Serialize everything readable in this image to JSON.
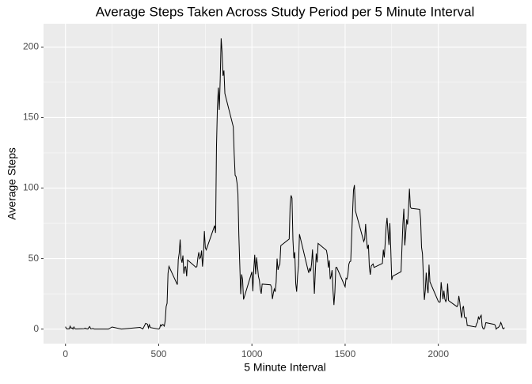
{
  "chart_data": {
    "type": "line",
    "title": "Average Steps Taken Across Study Period per 5 Minute Interval",
    "x_label": "5 Minute Interval",
    "y_label": "Average Steps",
    "x": [
      0,
      5,
      10,
      15,
      20,
      25,
      30,
      35,
      40,
      45,
      50,
      55,
      100,
      105,
      110,
      115,
      120,
      125,
      130,
      135,
      140,
      145,
      150,
      155,
      200,
      230,
      250,
      300,
      330,
      400,
      415,
      430,
      440,
      445,
      450,
      455,
      500,
      505,
      510,
      515,
      520,
      525,
      530,
      535,
      540,
      545,
      550,
      555,
      600,
      605,
      610,
      615,
      620,
      625,
      630,
      635,
      640,
      645,
      650,
      655,
      700,
      705,
      710,
      715,
      720,
      725,
      730,
      735,
      740,
      745,
      750,
      755,
      800,
      805,
      810,
      815,
      820,
      825,
      830,
      835,
      840,
      845,
      850,
      855,
      900,
      905,
      910,
      915,
      920,
      925,
      930,
      935,
      940,
      945,
      950,
      955,
      1000,
      1005,
      1010,
      1015,
      1020,
      1025,
      1030,
      1035,
      1040,
      1045,
      1050,
      1055,
      1100,
      1105,
      1110,
      1115,
      1120,
      1125,
      1130,
      1135,
      1140,
      1145,
      1150,
      1155,
      1200,
      1205,
      1210,
      1215,
      1220,
      1225,
      1230,
      1235,
      1240,
      1245,
      1250,
      1255,
      1300,
      1305,
      1310,
      1315,
      1320,
      1325,
      1330,
      1335,
      1340,
      1345,
      1350,
      1355,
      1400,
      1405,
      1410,
      1415,
      1420,
      1425,
      1430,
      1435,
      1440,
      1445,
      1450,
      1455,
      1500,
      1505,
      1510,
      1515,
      1520,
      1525,
      1530,
      1535,
      1540,
      1545,
      1550,
      1555,
      1600,
      1605,
      1610,
      1615,
      1620,
      1625,
      1630,
      1635,
      1640,
      1645,
      1650,
      1655,
      1700,
      1705,
      1710,
      1715,
      1720,
      1725,
      1730,
      1735,
      1740,
      1745,
      1750,
      1755,
      1800,
      1805,
      1810,
      1815,
      1820,
      1825,
      1830,
      1835,
      1840,
      1845,
      1850,
      1855,
      1900,
      1905,
      1910,
      1915,
      1920,
      1925,
      1930,
      1935,
      1940,
      1945,
      1950,
      1955,
      2000,
      2005,
      2010,
      2015,
      2020,
      2025,
      2030,
      2035,
      2040,
      2045,
      2050,
      2055,
      2100,
      2105,
      2110,
      2115,
      2120,
      2125,
      2130,
      2135,
      2140,
      2145,
      2150,
      2155,
      2200,
      2205,
      2210,
      2215,
      2220,
      2225,
      2230,
      2235,
      2240,
      2245,
      2250,
      2255,
      2300,
      2305,
      2310,
      2315,
      2320,
      2325,
      2330,
      2335,
      2340,
      2345,
      2350,
      2355
    ],
    "values": [
      1.7,
      0.3,
      0.1,
      0.2,
      0.1,
      2.1,
      0.5,
      0.9,
      0,
      1.5,
      0.3,
      0.1,
      0.3,
      0.7,
      0.2,
      0.3,
      0,
      1.1,
      1.8,
      0.2,
      0.2,
      0.4,
      0.3,
      0,
      0,
      0,
      1.5,
      0,
      0.4,
      1.2,
      0.1,
      4.1,
      3.5,
      0.8,
      3.1,
      1.1,
      0,
      0.5,
      3,
      2.2,
      3.3,
      3,
      2.1,
      6.1,
      16,
      18.3,
      39.5,
      44.5,
      31.5,
      49.3,
      53.8,
      63.5,
      50,
      47.1,
      52.2,
      39.3,
      44,
      44.2,
      37.4,
      49,
      43.8,
      44.4,
      50.5,
      54.5,
      49.9,
      50.9,
      55.7,
      44.3,
      52.3,
      69.5,
      57.8,
      56.2,
      73.4,
      68.2,
      129.4,
      157.5,
      171.2,
      155.4,
      177.3,
      206.2,
      195.9,
      179.6,
      183.4,
      167,
      143.5,
      124,
      109.1,
      108.1,
      103.7,
      95.9,
      66.2,
      45.2,
      24.8,
      38.8,
      35,
      21,
      40.6,
      26.8,
      42.4,
      52.7,
      38.9,
      50.8,
      44.3,
      37.4,
      34.7,
      28.3,
      25.1,
      31.9,
      31.4,
      29.7,
      21.3,
      25.5,
      28.4,
      26.5,
      33.4,
      50,
      42,
      44.6,
      46,
      59.2,
      63.9,
      87.7,
      94.8,
      92.8,
      63.4,
      50.2,
      54.5,
      32.4,
      26.5,
      37.7,
      45.1,
      67.3,
      42.3,
      39.9,
      43.3,
      41,
      46.2,
      56.4,
      42.8,
      25.1,
      40,
      53.5,
      47.3,
      60.8,
      55.8,
      51.9,
      43.6,
      48.7,
      35.5,
      37.5,
      41.8,
      27.5,
      17.1,
      26.1,
      43.6,
      43.8,
      30,
      36.1,
      35.5,
      38.8,
      46,
      47.8,
      48.1,
      65.3,
      82.9,
      98.7,
      102.1,
      84,
      62.1,
      64.1,
      74.5,
      63.2,
      56.9,
      59.8,
      43.9,
      38.6,
      44.7,
      45.5,
      46.2,
      43.7,
      46.6,
      56.3,
      50.7,
      61.2,
      72.7,
      78.9,
      68.9,
      59.7,
      75.1,
      56.5,
      34.8,
      37.5,
      40.7,
      58,
      74.7,
      85.3,
      59.3,
      67.8,
      77.7,
      74.2,
      85.3,
      99.5,
      86.6,
      85.6,
      84.9,
      77.8,
      58,
      53.4,
      36.3,
      20.7,
      27.4,
      40,
      30.2,
      25.5,
      45.7,
      33.5,
      19.6,
      19,
      19.3,
      33.3,
      26.8,
      21.2,
      27.3,
      21.3,
      19.5,
      21.3,
      32.3,
      20.2,
      15.9,
      17.2,
      23.5,
      19.2,
      12.5,
      8,
      14.7,
      16.3,
      8.7,
      7.8,
      8.1,
      2.6,
      1.5,
      3.7,
      4.8,
      8.5,
      7.1,
      8.7,
      9.8,
      2.2,
      0.3,
      0.1,
      1.6,
      4.6,
      3.3,
      2.8,
      0,
      0.8,
      1,
      1.6,
      2.6,
      4.7,
      3.3,
      0.6,
      0.2,
      1.1
    ],
    "color": "#000000",
    "xlim": [
      -117.75,
      2472.75
    ],
    "xticks": [
      0,
      500,
      1000,
      1500,
      2000
    ],
    "ylim": [
      -10.3,
      216.5
    ],
    "yticks": [
      0,
      50,
      100,
      150,
      200
    ],
    "grid": true
  }
}
